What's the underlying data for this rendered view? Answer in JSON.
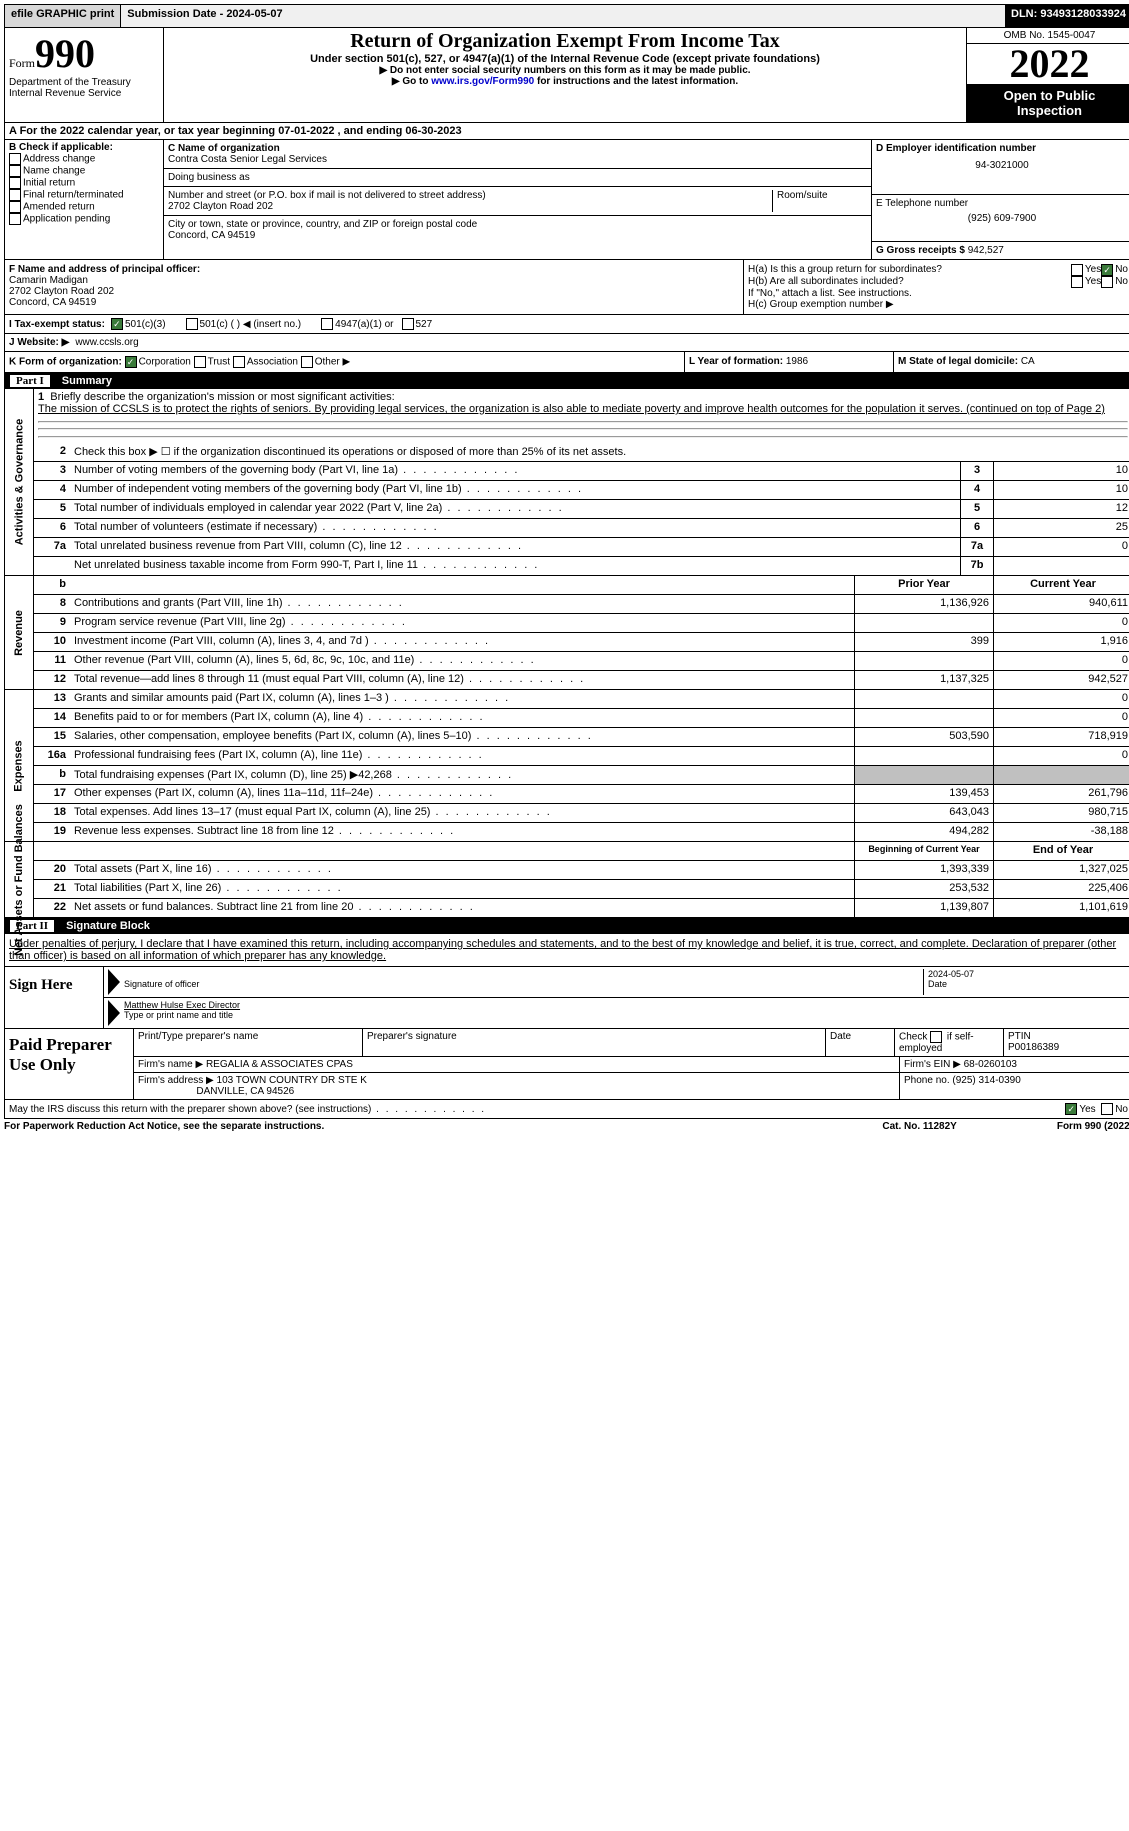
{
  "top": {
    "efile": "efile GRAPHIC print",
    "submission": "Submission Date - 2024-05-07",
    "dln": "DLN: 93493128033924"
  },
  "header": {
    "form_word": "Form",
    "form_num": "990",
    "dept": "Department of the Treasury Internal Revenue Service",
    "title": "Return of Organization Exempt From Income Tax",
    "subtitle": "Under section 501(c), 527, or 4947(a)(1) of the Internal Revenue Code (except private foundations)",
    "instr1": "Do not enter social security numbers on this form as it may be made public.",
    "instr2_pre": "Go to ",
    "instr2_link": "www.irs.gov/Form990",
    "instr2_post": " for instructions and the latest information.",
    "omb": "OMB No. 1545-0047",
    "year": "2022",
    "inspection": "Open to Public Inspection"
  },
  "row_a": "A For the 2022 calendar year, or tax year beginning 07-01-2022   , and ending 06-30-2023",
  "b": {
    "label": "B Check if applicable:",
    "items": [
      "Address change",
      "Name change",
      "Initial return",
      "Final return/terminated",
      "Amended return",
      "Application pending"
    ]
  },
  "c": {
    "name_lbl": "C Name of organization",
    "name": "Contra Costa Senior Legal Services",
    "dba_lbl": "Doing business as",
    "addr_lbl": "Number and street (or P.O. box if mail is not delivered to street address)",
    "room_lbl": "Room/suite",
    "addr": "2702 Clayton Road 202",
    "city_lbl": "City or town, state or province, country, and ZIP or foreign postal code",
    "city": "Concord, CA  94519"
  },
  "d": {
    "lbl": "D Employer identification number",
    "val": "94-3021000"
  },
  "e": {
    "lbl": "E Telephone number",
    "val": "(925) 609-7900"
  },
  "g": {
    "lbl": "G Gross receipts $",
    "val": "942,527"
  },
  "f": {
    "lbl": "F  Name and address of principal officer:",
    "name": "Camarin Madigan",
    "addr1": "2702 Clayton Road 202",
    "addr2": "Concord, CA  94519"
  },
  "h": {
    "a": "H(a)  Is this a group return for subordinates?",
    "b": "H(b)  Are all subordinates included?",
    "note": "If \"No,\" attach a list. See instructions.",
    "c": "H(c)  Group exemption number ▶",
    "yes": "Yes",
    "no": "No"
  },
  "i": {
    "lbl": "I   Tax-exempt status:",
    "o1": "501(c)(3)",
    "o2": "501(c) (  ) ◀ (insert no.)",
    "o3": "4947(a)(1) or",
    "o4": "527"
  },
  "j": {
    "lbl": "J   Website: ▶",
    "val": "www.ccsls.org"
  },
  "k": {
    "lbl": "K Form of organization:",
    "o1": "Corporation",
    "o2": "Trust",
    "o3": "Association",
    "o4": "Other ▶"
  },
  "l": {
    "lbl": "L Year of formation:",
    "val": "1986"
  },
  "m": {
    "lbl": "M State of legal domicile:",
    "val": "CA"
  },
  "part1": {
    "num": "Part I",
    "title": "Summary"
  },
  "tabs": {
    "ag": "Activities & Governance",
    "rev": "Revenue",
    "exp": "Expenses",
    "na": "Net Assets or Fund Balances"
  },
  "line1": {
    "lbl": "Briefly describe the organization's mission or most significant activities:",
    "txt": "The mission of CCSLS is to protect the rights of seniors. By providing legal services, the organization is also able to mediate poverty and improve health outcomes for the population it serves. (continued on top of Page 2)"
  },
  "line2": "Check this box ▶ ☐ if the organization discontinued its operations or disposed of more than 25% of its net assets.",
  "governance": [
    {
      "n": "3",
      "t": "Number of voting members of the governing body (Part VI, line 1a)",
      "b": "3",
      "v": "10"
    },
    {
      "n": "4",
      "t": "Number of independent voting members of the governing body (Part VI, line 1b)",
      "b": "4",
      "v": "10"
    },
    {
      "n": "5",
      "t": "Total number of individuals employed in calendar year 2022 (Part V, line 2a)",
      "b": "5",
      "v": "12"
    },
    {
      "n": "6",
      "t": "Total number of volunteers (estimate if necessary)",
      "b": "6",
      "v": "25"
    },
    {
      "n": "7a",
      "t": "Total unrelated business revenue from Part VIII, column (C), line 12",
      "b": "7a",
      "v": "0"
    },
    {
      "n": "",
      "t": "Net unrelated business taxable income from Form 990-T, Part I, line 11",
      "b": "7b",
      "v": ""
    }
  ],
  "col_hdr": {
    "prior": "Prior Year",
    "current": "Current Year",
    "beg": "Beginning of Current Year",
    "end": "End of Year"
  },
  "revenue": [
    {
      "n": "8",
      "t": "Contributions and grants (Part VIII, line 1h)",
      "p": "1,136,926",
      "c": "940,611"
    },
    {
      "n": "9",
      "t": "Program service revenue (Part VIII, line 2g)",
      "p": "",
      "c": "0"
    },
    {
      "n": "10",
      "t": "Investment income (Part VIII, column (A), lines 3, 4, and 7d )",
      "p": "399",
      "c": "1,916"
    },
    {
      "n": "11",
      "t": "Other revenue (Part VIII, column (A), lines 5, 6d, 8c, 9c, 10c, and 11e)",
      "p": "",
      "c": "0"
    },
    {
      "n": "12",
      "t": "Total revenue—add lines 8 through 11 (must equal Part VIII, column (A), line 12)",
      "p": "1,137,325",
      "c": "942,527"
    }
  ],
  "expenses": [
    {
      "n": "13",
      "t": "Grants and similar amounts paid (Part IX, column (A), lines 1–3 )",
      "p": "",
      "c": "0"
    },
    {
      "n": "14",
      "t": "Benefits paid to or for members (Part IX, column (A), line 4)",
      "p": "",
      "c": "0"
    },
    {
      "n": "15",
      "t": "Salaries, other compensation, employee benefits (Part IX, column (A), lines 5–10)",
      "p": "503,590",
      "c": "718,919"
    },
    {
      "n": "16a",
      "t": "Professional fundraising fees (Part IX, column (A), line 11e)",
      "p": "",
      "c": "0"
    },
    {
      "n": "b",
      "t": "Total fundraising expenses (Part IX, column (D), line 25) ▶42,268",
      "p": "GRAY",
      "c": "GRAY"
    },
    {
      "n": "17",
      "t": "Other expenses (Part IX, column (A), lines 11a–11d, 11f–24e)",
      "p": "139,453",
      "c": "261,796"
    },
    {
      "n": "18",
      "t": "Total expenses. Add lines 13–17 (must equal Part IX, column (A), line 25)",
      "p": "643,043",
      "c": "980,715"
    },
    {
      "n": "19",
      "t": "Revenue less expenses. Subtract line 18 from line 12",
      "p": "494,282",
      "c": "-38,188"
    }
  ],
  "netassets": [
    {
      "n": "20",
      "t": "Total assets (Part X, line 16)",
      "p": "1,393,339",
      "c": "1,327,025"
    },
    {
      "n": "21",
      "t": "Total liabilities (Part X, line 26)",
      "p": "253,532",
      "c": "225,406"
    },
    {
      "n": "22",
      "t": "Net assets or fund balances. Subtract line 21 from line 20",
      "p": "1,139,807",
      "c": "1,101,619"
    }
  ],
  "part2": {
    "num": "Part II",
    "title": "Signature Block"
  },
  "sig": {
    "penalty": "Under penalties of perjury, I declare that I have examined this return, including accompanying schedules and statements, and to the best of my knowledge and belief, it is true, correct, and complete. Declaration of preparer (other than officer) is based on all information of which preparer has any knowledge.",
    "sign_here": "Sign Here",
    "sig_officer": "Signature of officer",
    "date": "Date",
    "date_val": "2024-05-07",
    "name": "Matthew Hulse  Exec Director",
    "name_lbl": "Type or print name and title"
  },
  "prep": {
    "title": "Paid Preparer Use Only",
    "h1": "Print/Type preparer's name",
    "h2": "Preparer's signature",
    "h3": "Date",
    "h4_pre": "Check",
    "h4_post": "if self-employed",
    "ptin_lbl": "PTIN",
    "ptin": "P00186389",
    "firm_name_lbl": "Firm's name    ▶",
    "firm_name": "REGALIA & ASSOCIATES CPAS",
    "firm_ein_lbl": "Firm's EIN ▶",
    "firm_ein": "68-0260103",
    "firm_addr_lbl": "Firm's address ▶",
    "firm_addr1": "103 TOWN COUNTRY DR STE K",
    "firm_addr2": "DANVILLE, CA  94526",
    "phone_lbl": "Phone no.",
    "phone": "(925) 314-0390"
  },
  "discuss": {
    "q": "May the IRS discuss this return with the preparer shown above? (see instructions)",
    "yes": "Yes",
    "no": "No"
  },
  "footer": {
    "left": "For Paperwork Reduction Act Notice, see the separate instructions.",
    "mid": "Cat. No. 11282Y",
    "right": "Form 990 (2022)"
  }
}
